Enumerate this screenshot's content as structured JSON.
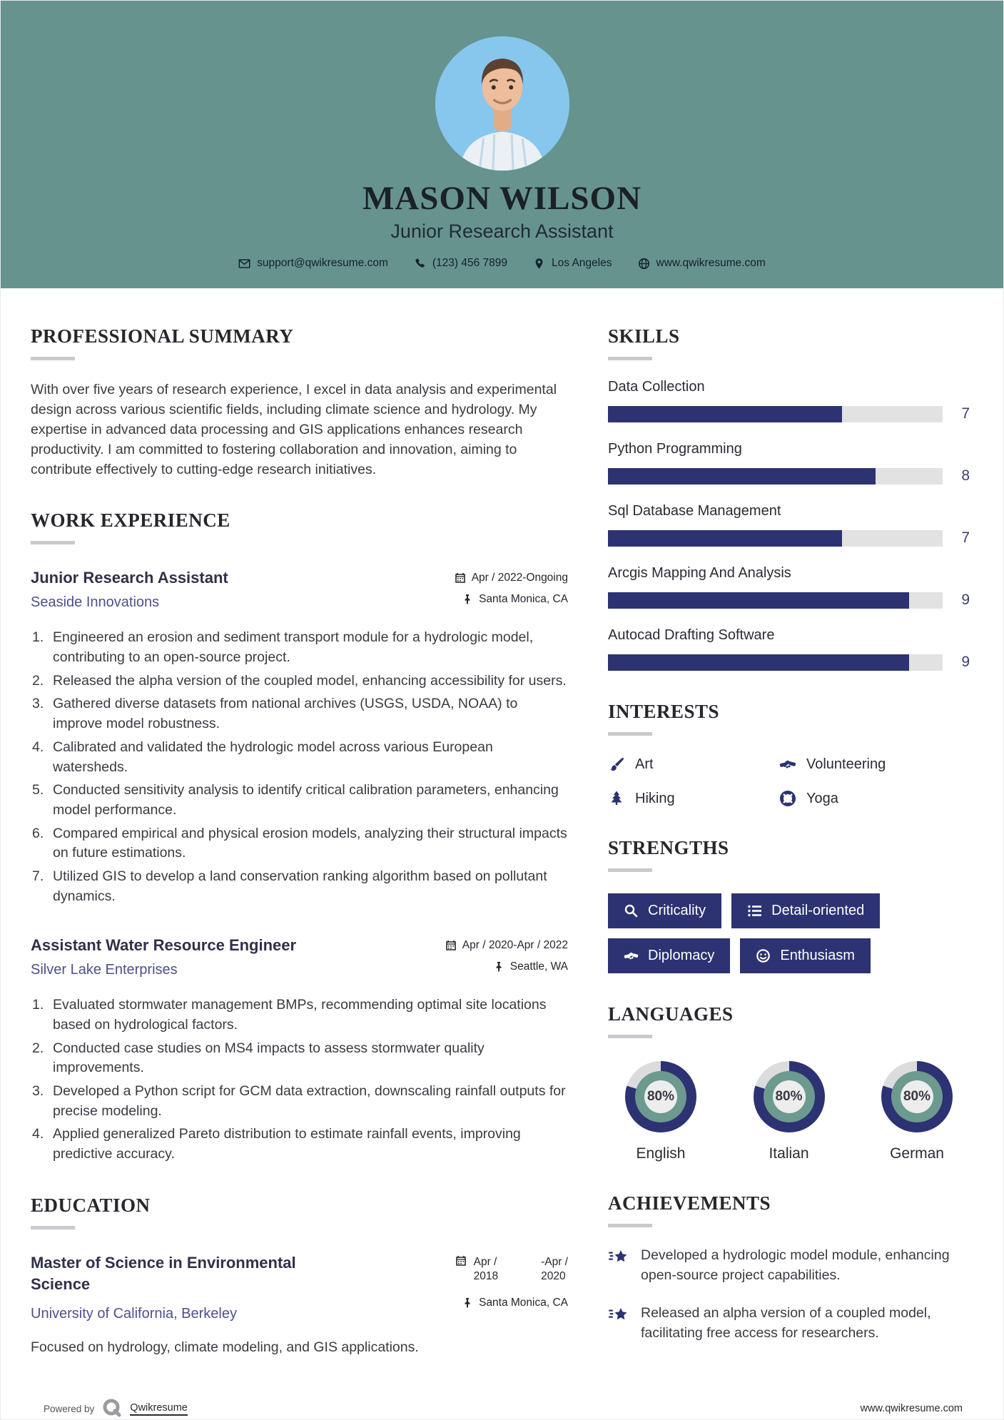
{
  "header": {
    "name": "MASON WILSON",
    "title": "Junior Research Assistant",
    "contact": {
      "email": "support@qwikresume.com",
      "phone": "(123) 456 7899",
      "location": "Los Angeles",
      "website": "www.qwikresume.com"
    }
  },
  "sections": {
    "summary": {
      "heading": "PROFESSIONAL SUMMARY",
      "text": "With over five years of research experience, I excel in data analysis and experimental design across various scientific fields, including climate science and hydrology. My expertise in advanced data processing and GIS applications enhances research productivity. I am committed to fostering collaboration and innovation, aiming to contribute effectively to cutting-edge research initiatives."
    },
    "experience": {
      "heading": "WORK EXPERIENCE",
      "jobs": [
        {
          "title": "Junior Research Assistant",
          "company": "Seaside Innovations",
          "dates": "Apr / 2022-Ongoing",
          "location": "Santa Monica, CA",
          "bullets": [
            "Engineered an erosion and sediment transport module for a hydrologic model, contributing to an open-source project.",
            "Released the alpha version of the coupled model, enhancing accessibility for users.",
            "Gathered diverse datasets from national archives (USGS, USDA, NOAA) to improve model robustness.",
            "Calibrated and validated the hydrologic model across various European watersheds.",
            "Conducted sensitivity analysis to identify critical calibration parameters, enhancing model performance.",
            "Compared empirical and physical erosion models, analyzing their structural impacts on future estimations.",
            "Utilized GIS to develop a land conservation ranking algorithm based on pollutant dynamics."
          ]
        },
        {
          "title": "Assistant Water Resource Engineer",
          "company": "Silver Lake Enterprises",
          "dates": "Apr / 2020-Apr / 2022",
          "location": "Seattle, WA",
          "bullets": [
            "Evaluated stormwater management BMPs, recommending optimal site locations based on hydrological factors.",
            "Conducted case studies on MS4 impacts to assess stormwater quality improvements.",
            "Developed a Python script for GCM data extraction, downscaling rainfall outputs for precise modeling.",
            "Applied generalized Pareto distribution to estimate rainfall events, improving predictive accuracy."
          ]
        }
      ]
    },
    "education": {
      "heading": "EDUCATION",
      "degree": "Master of Science in Environmental Science",
      "school": "University of California, Berkeley",
      "dates": {
        "start_top": "Apr /",
        "start_bottom": "2018",
        "end_top": "-Apr /",
        "end_bottom": "2020"
      },
      "location": "Santa Monica, CA",
      "description": "Focused on hydrology, climate modeling, and GIS applications."
    },
    "skills": {
      "heading": "SKILLS",
      "max": 10,
      "items": [
        {
          "label": "Data Collection",
          "value": 7
        },
        {
          "label": "Python Programming",
          "value": 8
        },
        {
          "label": "Sql Database Management",
          "value": 7
        },
        {
          "label": "Arcgis Mapping And Analysis",
          "value": 9
        },
        {
          "label": "Autocad Drafting Software",
          "value": 9
        }
      ]
    },
    "interests": {
      "heading": "INTERESTS",
      "items": [
        {
          "label": "Art",
          "icon": "paintbrush-icon"
        },
        {
          "label": "Volunteering",
          "icon": "handshake-icon"
        },
        {
          "label": "Hiking",
          "icon": "tree-icon"
        },
        {
          "label": "Yoga",
          "icon": "lifebuoy-icon"
        }
      ]
    },
    "strengths": {
      "heading": "STRENGTHS",
      "items": [
        {
          "label": "Criticality",
          "icon": "search-icon"
        },
        {
          "label": "Detail-oriented",
          "icon": "list-icon"
        },
        {
          "label": "Diplomacy",
          "icon": "handshake-icon"
        },
        {
          "label": "Enthusiasm",
          "icon": "smiley-icon"
        }
      ]
    },
    "languages": {
      "heading": "LANGUAGES",
      "items": [
        {
          "label": "English",
          "percent": 80
        },
        {
          "label": "Italian",
          "percent": 80
        },
        {
          "label": "German",
          "percent": 80
        }
      ]
    },
    "achievements": {
      "heading": "ACHIEVEMENTS",
      "items": [
        {
          "text": "Developed a hydrologic model module, enhancing open-source project capabilities."
        },
        {
          "text": "Released an alpha version of a coupled model, facilitating free access for researchers."
        }
      ]
    }
  },
  "footer": {
    "powered_by": "Powered by",
    "brand": "Qwikresume",
    "website": "www.qwikresume.com"
  },
  "colors": {
    "header_teal": "#67938F",
    "navy": "#2C3272",
    "sage": "#6C9A8E",
    "track_gray": "#E2E2E2",
    "company_purple": "#4F4F8C",
    "avatar_blue": "#87C7EE"
  }
}
